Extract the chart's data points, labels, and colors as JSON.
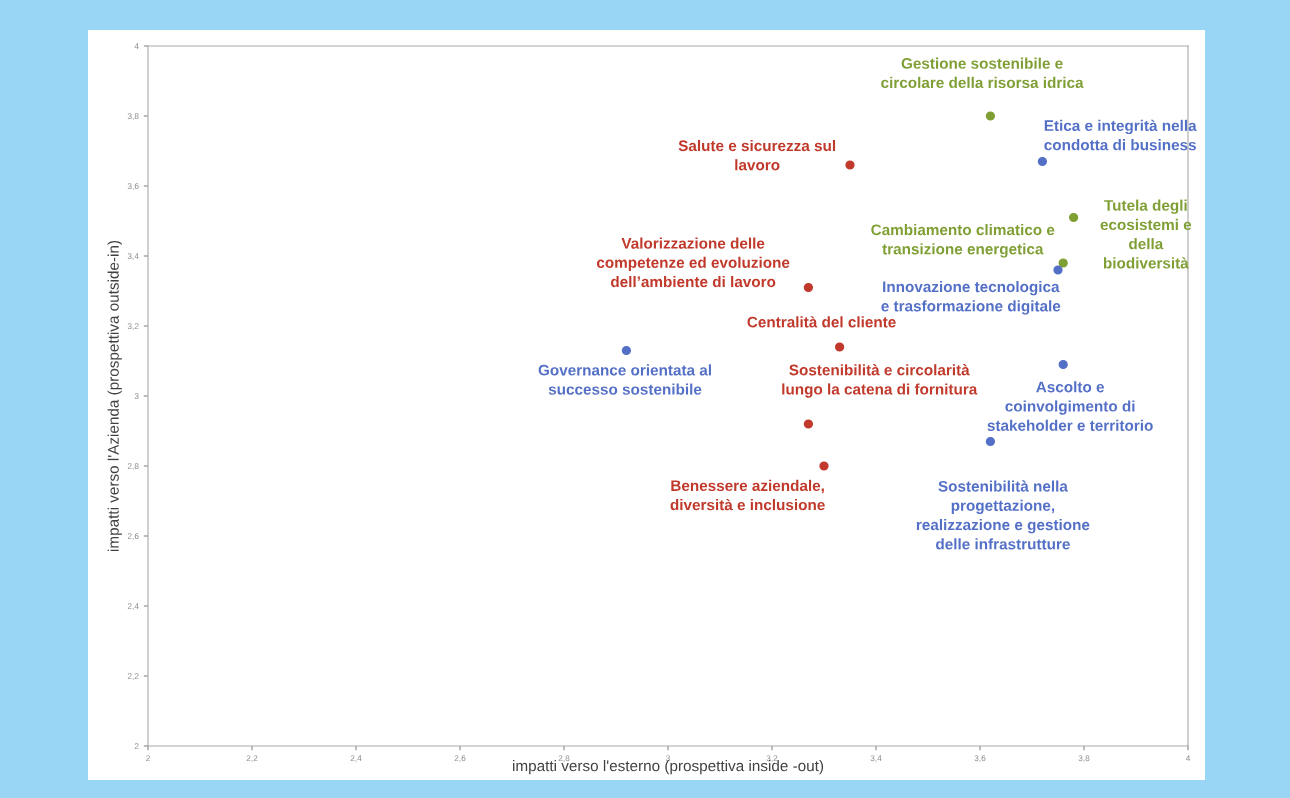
{
  "chart_data": {
    "type": "scatter",
    "xlabel": "impatti verso l'esterno (prospettiva inside -out)",
    "ylabel": "impatti verso l'Azienda (prospettiva outside-in)",
    "xlim": [
      2,
      4
    ],
    "ylim": [
      2,
      4
    ],
    "xticks": [
      2,
      {
        "value": 2.2,
        "label": "2,2"
      },
      {
        "value": 2.4,
        "label": "2,4"
      },
      {
        "value": 2.6,
        "label": "2,6"
      },
      {
        "value": 2.8,
        "label": "2,8"
      },
      3,
      {
        "value": 3.2,
        "label": "3,2"
      },
      {
        "value": 3.4,
        "label": "3,4"
      },
      {
        "value": 3.6,
        "label": "3,6"
      },
      {
        "value": 3.8,
        "label": "3,8"
      },
      4
    ],
    "yticks": [
      2,
      {
        "value": 2.2,
        "label": "2,2"
      },
      {
        "value": 2.4,
        "label": "2,4"
      },
      {
        "value": 2.6,
        "label": "2,6"
      },
      {
        "value": 2.8,
        "label": "2,8"
      },
      3,
      {
        "value": 3.2,
        "label": "3,2"
      },
      {
        "value": 3.4,
        "label": "3,4"
      },
      {
        "value": 3.6,
        "label": "3,6"
      },
      {
        "value": 3.8,
        "label": "3,8"
      },
      4
    ],
    "grid": false,
    "legend": false,
    "marker": "circle",
    "series": [
      {
        "color": "#c0392b",
        "x": [
          3.35,
          3.27,
          3.33,
          3.27,
          3.3
        ],
        "values": [
          3.66,
          3.31,
          3.14,
          2.92,
          2.8
        ]
      },
      {
        "color": "#7f9f35",
        "x": [
          3.62,
          3.78,
          3.76
        ],
        "values": [
          3.8,
          3.51,
          3.38
        ]
      },
      {
        "color": "#5470c6",
        "x": [
          3.72,
          3.75,
          2.92,
          3.76,
          3.62
        ],
        "values": [
          3.67,
          3.36,
          3.13,
          3.09,
          2.87
        ]
      }
    ],
    "annotations": [
      {
        "text": "Gestione sostenibile e\ncircolare della risorsa idrica",
        "x": 3.62,
        "y": 3.8
      },
      {
        "text": "Etica e integrità nella\ncondotta di business",
        "x": 3.72,
        "y": 3.67
      },
      {
        "text": "Salute e sicurezza sul\nlavoro",
        "x": 3.35,
        "y": 3.66
      },
      {
        "text": "Tutela degli\necosistemi e\ndella\nbiodiversità",
        "x": 3.78,
        "y": 3.51
      },
      {
        "text": "Cambiamento climatico e\ntransizione energetica",
        "x": 3.76,
        "y": 3.38
      },
      {
        "text": "Innovazione tecnologica\ne trasformazione digitale",
        "x": 3.75,
        "y": 3.36
      },
      {
        "text": "Valorizzazione delle\ncompetenze ed evoluzione\ndell’ambiente di lavoro",
        "x": 3.27,
        "y": 3.31
      },
      {
        "text": "Centralità del cliente",
        "x": 3.33,
        "y": 3.14
      },
      {
        "text": "Governance orientata al\nsuccesso sostenibile",
        "x": 2.92,
        "y": 3.13
      },
      {
        "text": "Ascolto e\ncoinvolgimento di\nstakeholder e territorio",
        "x": 3.76,
        "y": 3.09
      },
      {
        "text": "Sostenibilità e circolarità\nlungo la catena di fornitura",
        "x": 3.27,
        "y": 2.92
      },
      {
        "text": "Sostenibilità nella\nprogettazione,\nrealizzazione e gestione\ndelle infrastrutture",
        "x": 3.62,
        "y": 2.87
      },
      {
        "text": "Benessere aziendale,\ndiversità e inclusione",
        "x": 3.3,
        "y": 2.8
      }
    ]
  }
}
